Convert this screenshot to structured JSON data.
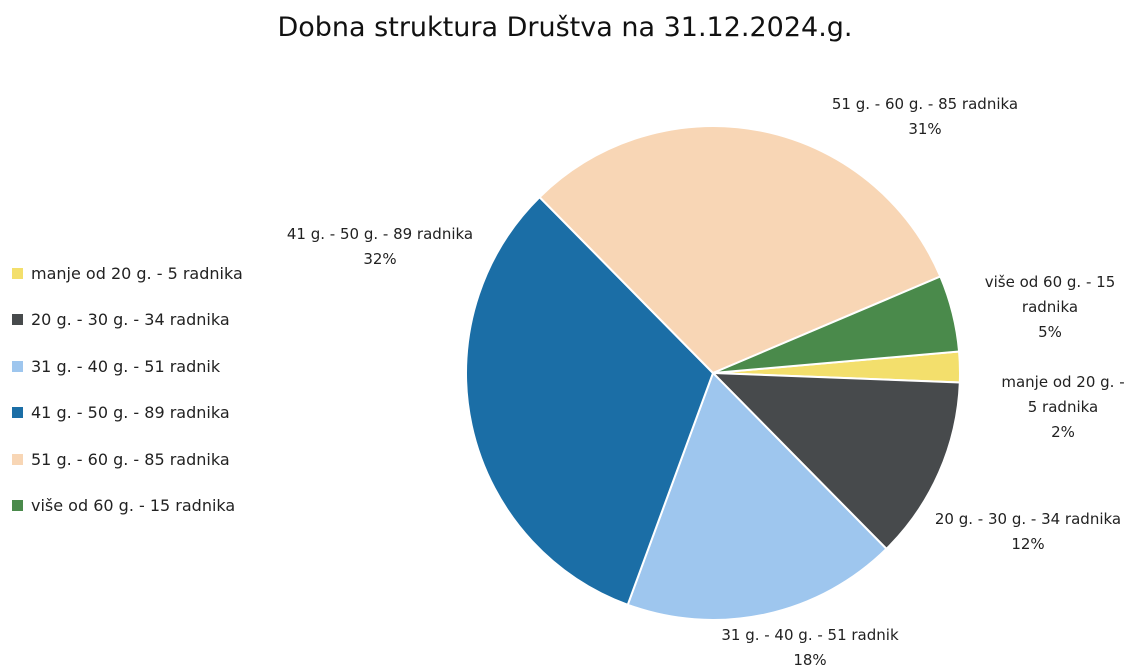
{
  "chart_data": {
    "type": "pie",
    "title": "Dobna struktura Društva na 31.12.2024.g.",
    "categories": [
      "manje od 20 g. - 5 radnika",
      "20 g. - 30 g. - 34 radnika",
      "31 g. - 40 g. - 51 radnik",
      "41 g. - 50 g. - 89 radnika",
      "51 g. - 60 g. - 85 radnika",
      "više od 60 g. - 15 radnika"
    ],
    "values": [
      2,
      12,
      18,
      32,
      31,
      5
    ],
    "value_labels": [
      "2%",
      "12%",
      "18%",
      "32%",
      "31%",
      "5%"
    ],
    "colors": [
      "#f3df6c",
      "#474a4c",
      "#9ec6ee",
      "#1b6ea6",
      "#f8d6b5",
      "#4a8a4b"
    ],
    "legend": "left"
  }
}
